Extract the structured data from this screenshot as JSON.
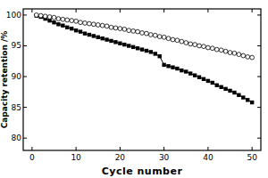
{
  "chart_data": {
    "type": "line",
    "x_label": "Cycle number",
    "y_label": "Capacity retention /%",
    "x": [
      1,
      2,
      3,
      4,
      5,
      6,
      7,
      8,
      9,
      10,
      11,
      12,
      13,
      14,
      15,
      16,
      17,
      18,
      19,
      20,
      21,
      22,
      23,
      24,
      25,
      26,
      27,
      28,
      29,
      30,
      31,
      32,
      33,
      34,
      35,
      36,
      37,
      38,
      39,
      40,
      41,
      42,
      43,
      44,
      45,
      46,
      47,
      48,
      49,
      50
    ],
    "series": [
      {
        "color": "#000000",
        "marker": "square",
        "values": [
          99.9,
          99.7,
          99.4,
          99.1,
          98.8,
          98.5,
          98.3,
          98.0,
          97.8,
          97.5,
          97.3,
          97.0,
          96.8,
          96.6,
          96.4,
          96.2,
          96.0,
          95.8,
          95.6,
          95.4,
          95.2,
          95.0,
          94.8,
          94.6,
          94.4,
          94.2,
          94.0,
          93.7,
          93.3,
          91.9,
          91.7,
          91.5,
          91.3,
          91.0,
          90.8,
          90.5,
          90.2,
          89.9,
          89.6,
          89.3,
          89.0,
          88.6,
          88.3,
          88.0,
          87.7,
          87.4,
          87.0,
          86.6,
          86.2,
          85.8
        ]
      },
      {
        "color": "#000000",
        "marker": "circle-open",
        "values": [
          100.0,
          99.9,
          99.8,
          99.7,
          99.6,
          99.4,
          99.3,
          99.2,
          99.1,
          99.0,
          98.8,
          98.7,
          98.6,
          98.5,
          98.4,
          98.3,
          98.2,
          98.0,
          97.9,
          97.8,
          97.7,
          97.5,
          97.4,
          97.3,
          97.1,
          97.0,
          96.8,
          96.7,
          96.5,
          96.4,
          96.2,
          96.0,
          95.9,
          95.7,
          95.5,
          95.3,
          95.2,
          95.0,
          94.9,
          94.7,
          94.6,
          94.4,
          94.3,
          94.1,
          93.9,
          93.8,
          93.6,
          93.4,
          93.2,
          93.1
        ]
      }
    ],
    "xlim": [
      -2,
      52
    ],
    "xticks": [
      0,
      10,
      20,
      30,
      40,
      50
    ],
    "ylim": [
      78,
      101
    ],
    "yticks": [
      80,
      85,
      90,
      95,
      100
    ],
    "grid": false
  }
}
